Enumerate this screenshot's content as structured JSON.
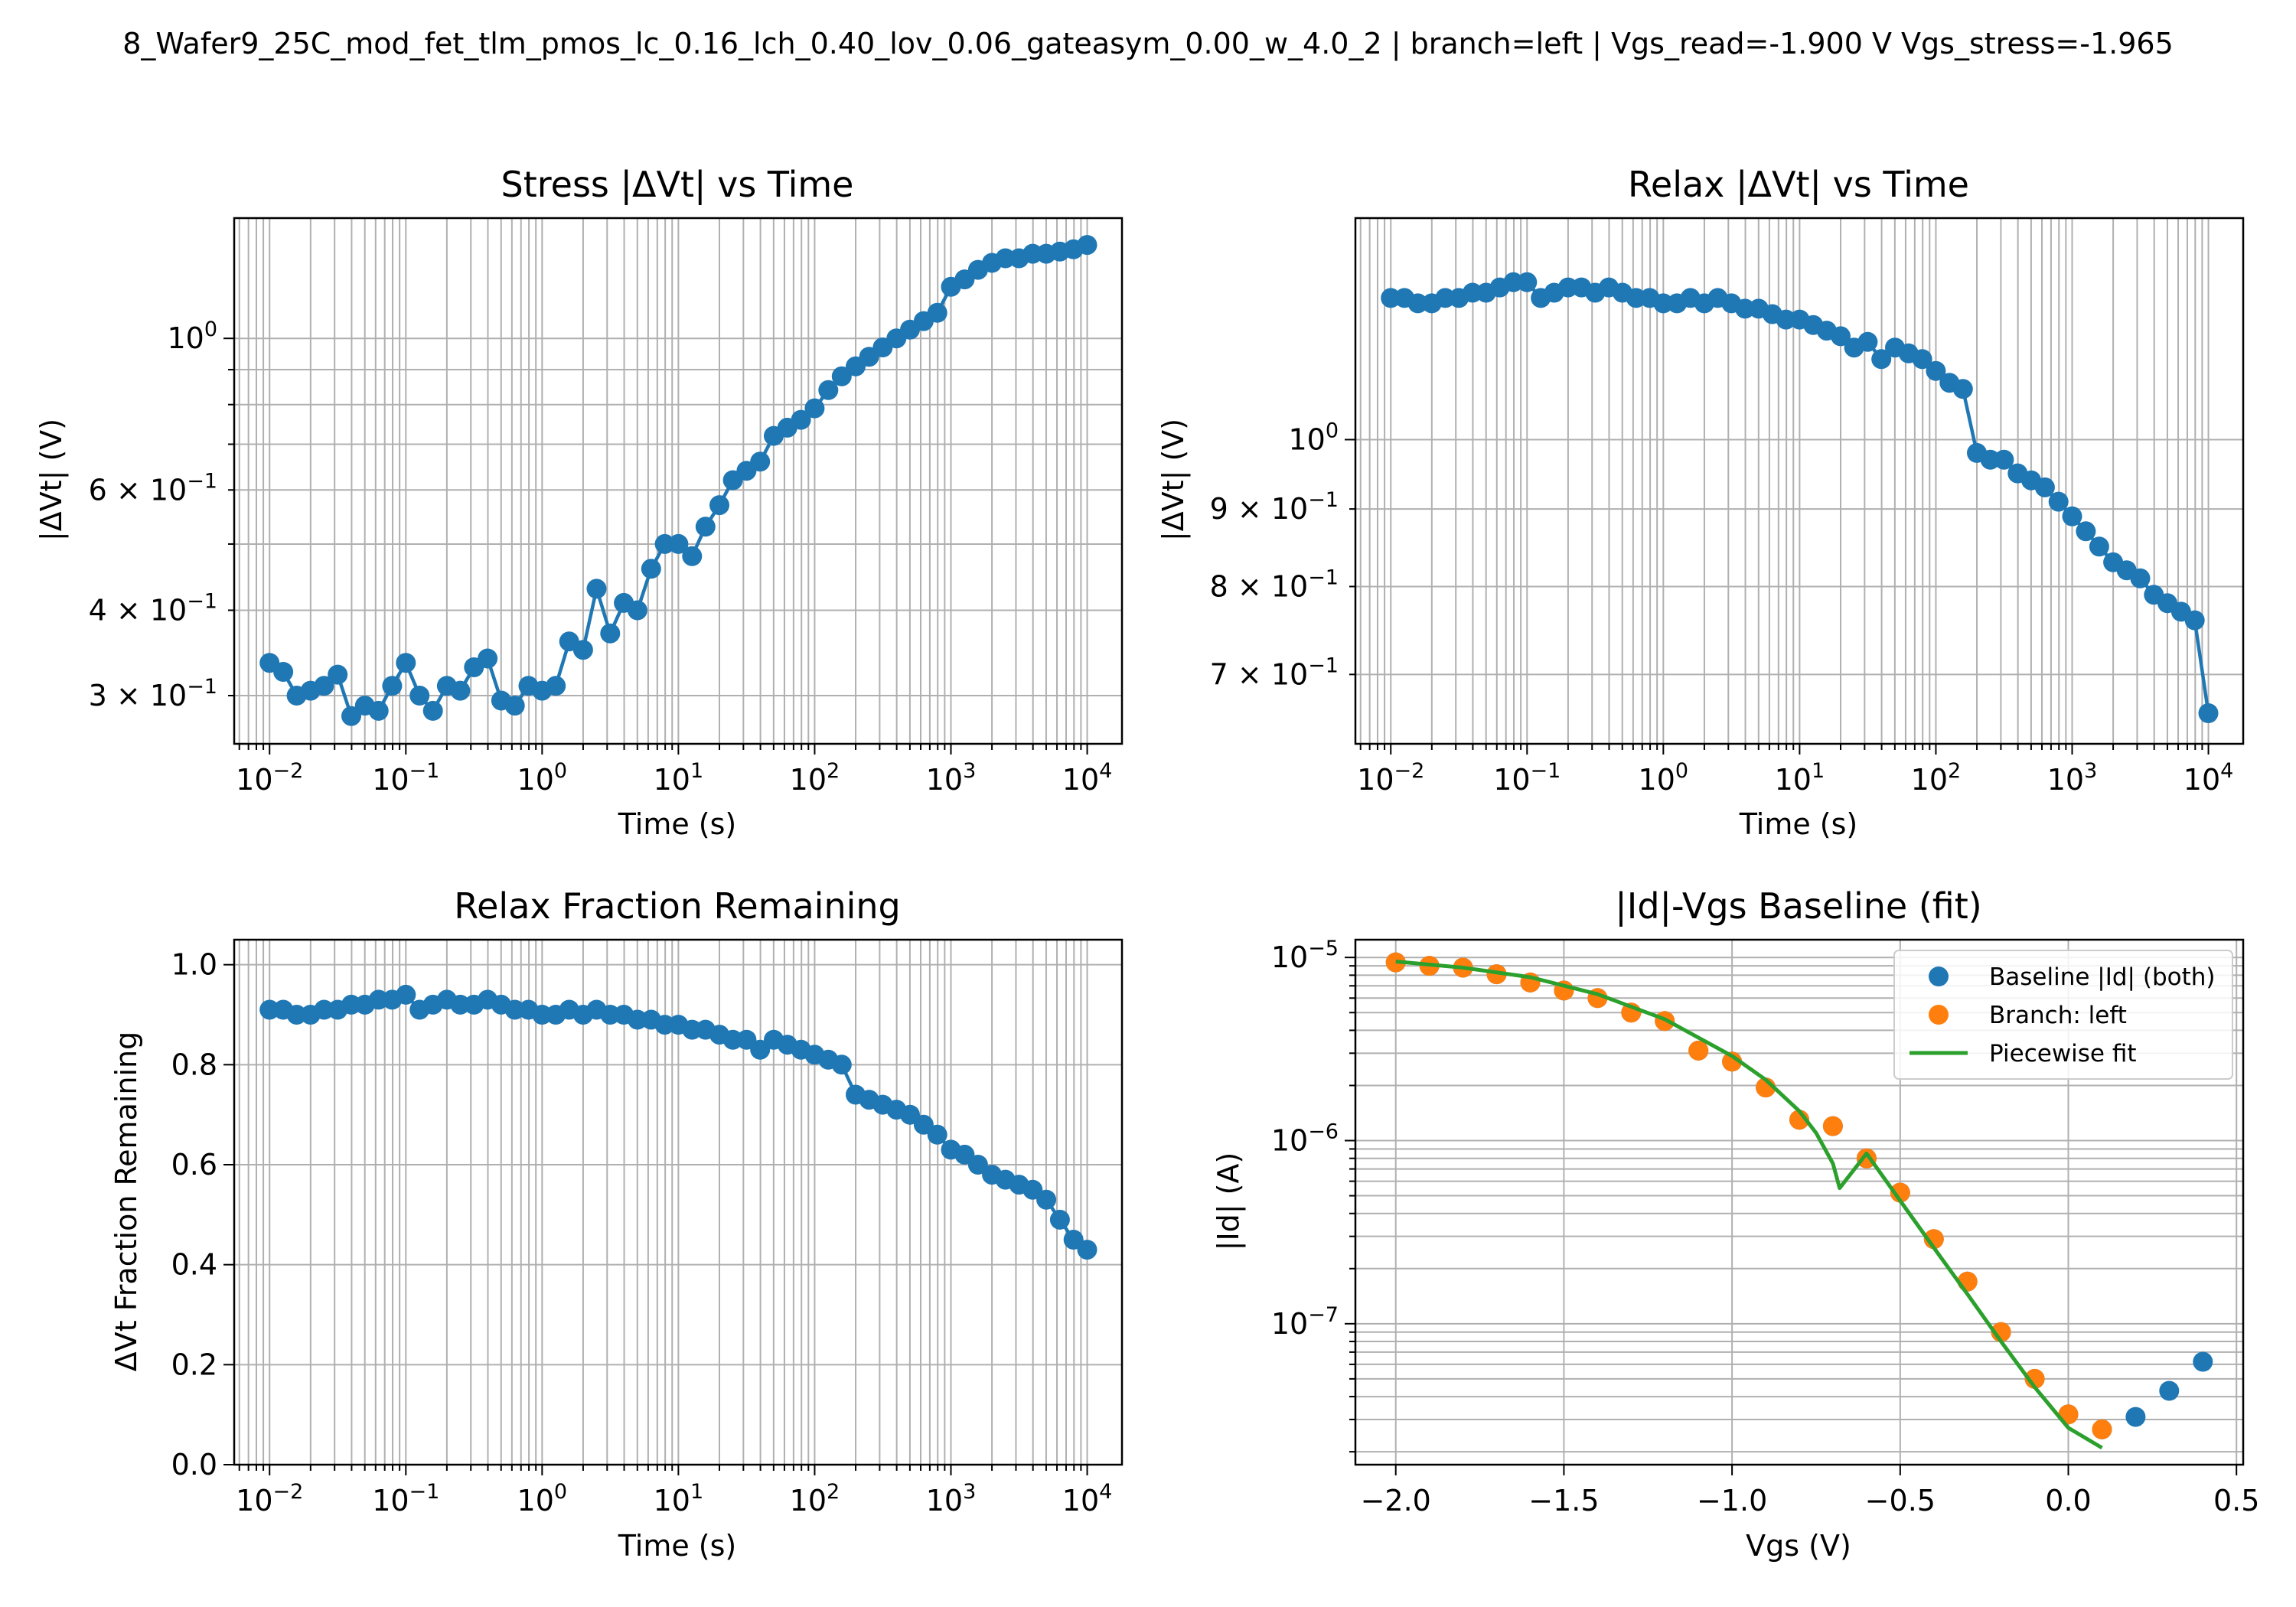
{
  "suptitle": "8_Wafer9_25C_mod_fet_tlm_pmos_lc_0.16_lch_0.40_lov_0.06_gateasym_0.00_w_4.0_2  |  branch=left  |  Vgs_read=-1.900 V  Vgs_stress=-1.965",
  "colors": {
    "blue": "#1f77b4",
    "orange": "#ff7f0e",
    "green": "#2ca02c",
    "grid": "#b0b0b0"
  },
  "chart_data": [
    {
      "type": "line",
      "title": "Stress |ΔVt| vs Time",
      "xlabel": "Time (s)",
      "ylabel": "|ΔVt| (V)",
      "xscale": "log",
      "yscale": "log",
      "xlim": [
        0.0055,
        18000
      ],
      "ylim": [
        0.255,
        1.5
      ],
      "grid": true,
      "xticks": [
        {
          "v": 0.01,
          "b": "10",
          "e": "−2"
        },
        {
          "v": 0.1,
          "b": "10",
          "e": "−1"
        },
        {
          "v": 1,
          "b": "10",
          "e": "0"
        },
        {
          "v": 10,
          "b": "10",
          "e": "1"
        },
        {
          "v": 100,
          "b": "10",
          "e": "2"
        },
        {
          "v": 1000,
          "b": "10",
          "e": "3"
        },
        {
          "v": 10000,
          "b": "10",
          "e": "4"
        }
      ],
      "yticks": [
        {
          "v": 0.3,
          "b": "3 × 10",
          "e": "−1"
        },
        {
          "v": 0.4,
          "b": "4 × 10",
          "e": "−1"
        },
        {
          "v": 0.6,
          "b": "6 × 10",
          "e": "−1"
        },
        {
          "v": 1.0,
          "b": "10",
          "e": "0"
        }
      ],
      "series": [
        {
          "color": "#1f77b4",
          "x": [
            0.01,
            0.0126,
            0.0158,
            0.02,
            0.0251,
            0.0316,
            0.0398,
            0.0501,
            0.0631,
            0.0794,
            0.1,
            0.126,
            0.158,
            0.2,
            0.251,
            0.316,
            0.398,
            0.501,
            0.631,
            0.794,
            1.0,
            1.26,
            1.58,
            2.0,
            2.51,
            3.16,
            3.98,
            5.01,
            6.31,
            7.94,
            10,
            12.6,
            15.8,
            20,
            25.1,
            31.6,
            39.8,
            50.1,
            63.1,
            79.4,
            100,
            126,
            158,
            200,
            251,
            316,
            398,
            501,
            631,
            794,
            1000,
            1260,
            1580,
            2000,
            2510,
            3160,
            3980,
            5010,
            6310,
            7940,
            10000
          ],
          "y": [
            0.335,
            0.325,
            0.3,
            0.305,
            0.31,
            0.322,
            0.28,
            0.29,
            0.285,
            0.31,
            0.335,
            0.3,
            0.285,
            0.31,
            0.305,
            0.33,
            0.34,
            0.295,
            0.29,
            0.31,
            0.305,
            0.31,
            0.36,
            0.35,
            0.43,
            0.37,
            0.41,
            0.4,
            0.46,
            0.5,
            0.5,
            0.48,
            0.53,
            0.57,
            0.62,
            0.64,
            0.66,
            0.72,
            0.74,
            0.76,
            0.79,
            0.84,
            0.88,
            0.91,
            0.94,
            0.97,
            1.0,
            1.03,
            1.06,
            1.09,
            1.19,
            1.22,
            1.26,
            1.29,
            1.31,
            1.31,
            1.33,
            1.33,
            1.34,
            1.35,
            1.37
          ]
        }
      ]
    },
    {
      "type": "line",
      "title": "Relax |ΔVt| vs Time",
      "xlabel": "Time (s)",
      "ylabel": "|ΔVt| (V)",
      "xscale": "log",
      "yscale": "log",
      "xlim": [
        0.0055,
        18000
      ],
      "ylim": [
        0.63,
        1.4
      ],
      "grid": true,
      "xticks": [
        {
          "v": 0.01,
          "b": "10",
          "e": "−2"
        },
        {
          "v": 0.1,
          "b": "10",
          "e": "−1"
        },
        {
          "v": 1,
          "b": "10",
          "e": "0"
        },
        {
          "v": 10,
          "b": "10",
          "e": "1"
        },
        {
          "v": 100,
          "b": "10",
          "e": "2"
        },
        {
          "v": 1000,
          "b": "10",
          "e": "3"
        },
        {
          "v": 10000,
          "b": "10",
          "e": "4"
        }
      ],
      "yticks": [
        {
          "v": 0.7,
          "b": "7 × 10",
          "e": "−1"
        },
        {
          "v": 0.8,
          "b": "8 × 10",
          "e": "−1"
        },
        {
          "v": 0.9,
          "b": "9 × 10",
          "e": "−1"
        },
        {
          "v": 1.0,
          "b": "10",
          "e": "0"
        }
      ],
      "series": [
        {
          "color": "#1f77b4",
          "x": [
            0.01,
            0.0126,
            0.0158,
            0.02,
            0.0251,
            0.0316,
            0.0398,
            0.0501,
            0.0631,
            0.0794,
            0.1,
            0.126,
            0.158,
            0.2,
            0.251,
            0.316,
            0.398,
            0.501,
            0.631,
            0.794,
            1.0,
            1.26,
            1.58,
            2.0,
            2.51,
            3.16,
            3.98,
            5.01,
            6.31,
            7.94,
            10,
            12.6,
            15.8,
            20,
            25.1,
            31.6,
            39.8,
            50.1,
            63.1,
            79.4,
            100,
            126,
            158,
            200,
            251,
            316,
            398,
            501,
            631,
            794,
            1000,
            1260,
            1580,
            2000,
            2510,
            3160,
            3980,
            5010,
            6310,
            7940,
            10000
          ],
          "y": [
            1.24,
            1.24,
            1.23,
            1.23,
            1.24,
            1.24,
            1.25,
            1.25,
            1.26,
            1.27,
            1.27,
            1.24,
            1.25,
            1.26,
            1.26,
            1.25,
            1.26,
            1.25,
            1.24,
            1.24,
            1.23,
            1.23,
            1.24,
            1.23,
            1.24,
            1.23,
            1.22,
            1.22,
            1.21,
            1.2,
            1.2,
            1.19,
            1.18,
            1.17,
            1.15,
            1.16,
            1.13,
            1.15,
            1.14,
            1.13,
            1.11,
            1.09,
            1.08,
            0.98,
            0.97,
            0.97,
            0.95,
            0.94,
            0.93,
            0.91,
            0.89,
            0.87,
            0.85,
            0.83,
            0.82,
            0.81,
            0.79,
            0.78,
            0.77,
            0.76,
            0.66
          ]
        }
      ]
    },
    {
      "type": "line",
      "title": "Relax Fraction Remaining",
      "xlabel": "Time (s)",
      "ylabel": "ΔVt Fraction Remaining",
      "xscale": "log",
      "yscale": "linear",
      "xlim": [
        0.0055,
        18000
      ],
      "ylim": [
        0.0,
        1.05
      ],
      "grid": true,
      "xticks": [
        {
          "v": 0.01,
          "b": "10",
          "e": "−2"
        },
        {
          "v": 0.1,
          "b": "10",
          "e": "−1"
        },
        {
          "v": 1,
          "b": "10",
          "e": "0"
        },
        {
          "v": 10,
          "b": "10",
          "e": "1"
        },
        {
          "v": 100,
          "b": "10",
          "e": "2"
        },
        {
          "v": 1000,
          "b": "10",
          "e": "3"
        },
        {
          "v": 10000,
          "b": "10",
          "e": "4"
        }
      ],
      "yticks": [
        {
          "v": 0.0,
          "b": "0.0",
          "e": ""
        },
        {
          "v": 0.2,
          "b": "0.2",
          "e": ""
        },
        {
          "v": 0.4,
          "b": "0.4",
          "e": ""
        },
        {
          "v": 0.6,
          "b": "0.6",
          "e": ""
        },
        {
          "v": 0.8,
          "b": "0.8",
          "e": ""
        },
        {
          "v": 1.0,
          "b": "1.0",
          "e": ""
        }
      ],
      "series": [
        {
          "color": "#1f77b4",
          "x": [
            0.01,
            0.0126,
            0.0158,
            0.02,
            0.0251,
            0.0316,
            0.0398,
            0.0501,
            0.0631,
            0.0794,
            0.1,
            0.126,
            0.158,
            0.2,
            0.251,
            0.316,
            0.398,
            0.501,
            0.631,
            0.794,
            1.0,
            1.26,
            1.58,
            2.0,
            2.51,
            3.16,
            3.98,
            5.01,
            6.31,
            7.94,
            10,
            12.6,
            15.8,
            20,
            25.1,
            31.6,
            39.8,
            50.1,
            63.1,
            79.4,
            100,
            126,
            158,
            200,
            251,
            316,
            398,
            501,
            631,
            794,
            1000,
            1260,
            1580,
            2000,
            2510,
            3160,
            3980,
            5010,
            6310,
            7940,
            10000
          ],
          "y": [
            0.91,
            0.91,
            0.9,
            0.9,
            0.91,
            0.91,
            0.92,
            0.92,
            0.93,
            0.93,
            0.94,
            0.91,
            0.92,
            0.93,
            0.92,
            0.92,
            0.93,
            0.92,
            0.91,
            0.91,
            0.9,
            0.9,
            0.91,
            0.9,
            0.91,
            0.9,
            0.9,
            0.89,
            0.89,
            0.88,
            0.88,
            0.87,
            0.87,
            0.86,
            0.85,
            0.85,
            0.83,
            0.85,
            0.84,
            0.83,
            0.82,
            0.81,
            0.8,
            0.74,
            0.73,
            0.72,
            0.71,
            0.7,
            0.68,
            0.66,
            0.63,
            0.62,
            0.6,
            0.58,
            0.57,
            0.56,
            0.55,
            0.53,
            0.49,
            0.45,
            0.43
          ]
        }
      ]
    },
    {
      "type": "scatter",
      "title": "|Id|-Vgs Baseline (fit)",
      "xlabel": "Vgs (V)",
      "ylabel": "|Id| (A)",
      "xscale": "linear",
      "yscale": "log",
      "xlim": [
        -2.12,
        0.52
      ],
      "ylim": [
        1.7e-08,
        1.25e-05
      ],
      "grid": true,
      "xticks": [
        {
          "v": -2.0,
          "b": "−2.0",
          "e": ""
        },
        {
          "v": -1.5,
          "b": "−1.5",
          "e": ""
        },
        {
          "v": -1.0,
          "b": "−1.0",
          "e": ""
        },
        {
          "v": -0.5,
          "b": "−0.5",
          "e": ""
        },
        {
          "v": 0.0,
          "b": "0.0",
          "e": ""
        },
        {
          "v": 0.5,
          "b": "0.5",
          "e": ""
        }
      ],
      "yticks": [
        {
          "v": 1e-07,
          "b": "10",
          "e": "−7"
        },
        {
          "v": 1e-06,
          "b": "10",
          "e": "−6"
        },
        {
          "v": 1e-05,
          "b": "10",
          "e": "−5"
        }
      ],
      "legend_placement": "upper right",
      "series": [
        {
          "name": "Baseline |Id| (both)",
          "kind": "scatter",
          "color": "#1f77b4",
          "x": [
            -2.0,
            -1.9,
            -1.8,
            -1.7,
            -1.6,
            -1.5,
            -1.4,
            -1.3,
            -1.2,
            -1.1,
            -1.0,
            -0.9,
            -0.8,
            -0.7,
            -0.6,
            -0.5,
            -0.4,
            -0.3,
            -0.2,
            -0.1,
            0.0,
            0.1,
            0.2,
            0.3,
            0.4
          ],
          "y": [
            9.4e-06,
            9e-06,
            8.8e-06,
            8.1e-06,
            7.3e-06,
            6.6e-06,
            6e-06,
            5e-06,
            4.5e-06,
            3.1e-06,
            2.7e-06,
            1.95e-06,
            1.3e-06,
            1.2e-06,
            8e-07,
            5.2e-07,
            2.9e-07,
            1.7e-07,
            9e-08,
            5e-08,
            3.2e-08,
            2.65e-08,
            3.1e-08,
            4.3e-08,
            6.2e-08
          ]
        },
        {
          "name": "Branch: left",
          "kind": "scatter",
          "color": "#ff7f0e",
          "x": [
            -2.0,
            -1.9,
            -1.8,
            -1.7,
            -1.6,
            -1.5,
            -1.4,
            -1.3,
            -1.2,
            -1.1,
            -1.0,
            -0.9,
            -0.8,
            -0.7,
            -0.6,
            -0.5,
            -0.4,
            -0.3,
            -0.2,
            -0.1,
            0.0,
            0.1
          ],
          "y": [
            9.4e-06,
            9e-06,
            8.8e-06,
            8.1e-06,
            7.3e-06,
            6.6e-06,
            6e-06,
            5e-06,
            4.5e-06,
            3.1e-06,
            2.7e-06,
            1.95e-06,
            1.3e-06,
            1.2e-06,
            8e-07,
            5.2e-07,
            2.9e-07,
            1.7e-07,
            9e-08,
            5e-08,
            3.2e-08,
            2.65e-08
          ]
        },
        {
          "name": "Piecewise fit",
          "kind": "line",
          "color": "#2ca02c",
          "x": [
            -2.0,
            -1.8,
            -1.6,
            -1.4,
            -1.2,
            -1.0,
            -0.9,
            -0.8,
            -0.75,
            -0.7,
            -0.68,
            -0.6,
            -0.5,
            -0.4,
            -0.3,
            -0.2,
            -0.1,
            0.0,
            0.1
          ],
          "y": [
            9.5e-06,
            8.8e-06,
            7.8e-06,
            6.3e-06,
            4.6e-06,
            2.9e-06,
            2.15e-06,
            1.45e-06,
            1.1e-06,
            7.5e-07,
            5.5e-07,
            8.5e-07,
            4.7e-07,
            2.6e-07,
            1.45e-07,
            8e-08,
            4.5e-08,
            2.7e-08,
            2.1e-08
          ]
        }
      ]
    }
  ]
}
